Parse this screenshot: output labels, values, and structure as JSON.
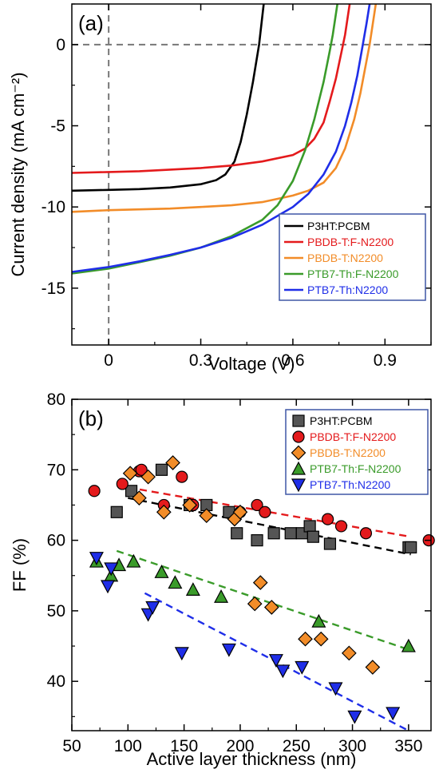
{
  "chart_data": [
    {
      "type": "line",
      "panel_label": "(a)",
      "xlabel": "Voltage (V)",
      "ylabel": "Current density (mA cm⁻²)",
      "xlim": [
        -0.12,
        1.05
      ],
      "ylim": [
        -18.5,
        2.5
      ],
      "xticks": [
        0,
        0.3,
        0.6,
        0.9
      ],
      "xtick_labels": [
        "0",
        "0.3",
        "0.6",
        "0.9"
      ],
      "yticks": [
        0,
        -5,
        -10,
        -15
      ],
      "ytick_labels": [
        "0",
        "-5",
        "-10",
        "-15"
      ],
      "grid": false,
      "reference_lines": [
        "x=0 dashed",
        "y=0 dashed"
      ],
      "legend_position": "bottom-right",
      "series": [
        {
          "name": "P3HT:PCBM",
          "color": "#000000",
          "points": [
            [
              -0.12,
              -9.0
            ],
            [
              0.0,
              -8.95
            ],
            [
              0.1,
              -8.9
            ],
            [
              0.2,
              -8.8
            ],
            [
              0.3,
              -8.6
            ],
            [
              0.35,
              -8.35
            ],
            [
              0.38,
              -8.0
            ],
            [
              0.41,
              -7.2
            ],
            [
              0.43,
              -6.0
            ],
            [
              0.45,
              -4.3
            ],
            [
              0.47,
              -2.3
            ],
            [
              0.49,
              0.0
            ],
            [
              0.505,
              2.5
            ]
          ]
        },
        {
          "name": "PBDB-T:F-N2200",
          "color": "#e41a1c",
          "points": [
            [
              -0.12,
              -7.9
            ],
            [
              0.0,
              -7.85
            ],
            [
              0.1,
              -7.8
            ],
            [
              0.2,
              -7.7
            ],
            [
              0.3,
              -7.6
            ],
            [
              0.4,
              -7.45
            ],
            [
              0.5,
              -7.2
            ],
            [
              0.6,
              -6.8
            ],
            [
              0.64,
              -6.4
            ],
            [
              0.67,
              -5.8
            ],
            [
              0.7,
              -4.8
            ],
            [
              0.72,
              -3.5
            ],
            [
              0.74,
              -2.1
            ],
            [
              0.76,
              -0.3
            ],
            [
              0.77,
              0.6
            ],
            [
              0.785,
              2.5
            ]
          ]
        },
        {
          "name": "PBDB-T:N2200",
          "color": "#f28c28",
          "points": [
            [
              -0.12,
              -10.3
            ],
            [
              0.0,
              -10.2
            ],
            [
              0.1,
              -10.15
            ],
            [
              0.2,
              -10.1
            ],
            [
              0.3,
              -10.0
            ],
            [
              0.4,
              -9.9
            ],
            [
              0.5,
              -9.7
            ],
            [
              0.6,
              -9.3
            ],
            [
              0.65,
              -9.0
            ],
            [
              0.7,
              -8.5
            ],
            [
              0.74,
              -7.6
            ],
            [
              0.77,
              -6.4
            ],
            [
              0.8,
              -4.6
            ],
            [
              0.82,
              -3.0
            ],
            [
              0.835,
              -1.5
            ],
            [
              0.85,
              0.0
            ],
            [
              0.87,
              2.5
            ]
          ]
        },
        {
          "name": "PTB7-Th:F-N2200",
          "color": "#3a9b2a",
          "points": [
            [
              -0.12,
              -14.1
            ],
            [
              0.0,
              -13.8
            ],
            [
              0.1,
              -13.4
            ],
            [
              0.2,
              -13.0
            ],
            [
              0.3,
              -12.5
            ],
            [
              0.4,
              -11.8
            ],
            [
              0.5,
              -10.8
            ],
            [
              0.55,
              -9.9
            ],
            [
              0.6,
              -8.4
            ],
            [
              0.64,
              -6.5
            ],
            [
              0.67,
              -4.6
            ],
            [
              0.7,
              -2.3
            ],
            [
              0.72,
              -0.4
            ],
            [
              0.73,
              0.6
            ],
            [
              0.745,
              2.5
            ]
          ]
        },
        {
          "name": "PTB7-Th:N2200",
          "color": "#1f2ee8",
          "points": [
            [
              -0.12,
              -14.0
            ],
            [
              0.0,
              -13.7
            ],
            [
              0.1,
              -13.35
            ],
            [
              0.2,
              -12.95
            ],
            [
              0.3,
              -12.5
            ],
            [
              0.4,
              -11.9
            ],
            [
              0.5,
              -11.1
            ],
            [
              0.6,
              -10.0
            ],
            [
              0.65,
              -9.2
            ],
            [
              0.7,
              -8.0
            ],
            [
              0.74,
              -6.6
            ],
            [
              0.77,
              -5.0
            ],
            [
              0.79,
              -3.6
            ],
            [
              0.81,
              -1.9
            ],
            [
              0.825,
              -0.3
            ],
            [
              0.84,
              1.3
            ],
            [
              0.85,
              2.5
            ]
          ]
        }
      ]
    },
    {
      "type": "scatter",
      "panel_label": "(b)",
      "xlabel": "Active layer thickness (nm)",
      "ylabel": "FF (%)",
      "xlim": [
        50,
        370
      ],
      "ylim": [
        33,
        80
      ],
      "xticks": [
        50,
        100,
        150,
        200,
        250,
        300,
        350
      ],
      "xtick_labels": [
        "50",
        "100",
        "150",
        "200",
        "250",
        "300",
        "350"
      ],
      "yticks": [
        40,
        50,
        60,
        70,
        80
      ],
      "ytick_labels": [
        "40",
        "50",
        "60",
        "70",
        "80"
      ],
      "grid": false,
      "legend_position": "top-right",
      "series": [
        {
          "name": "P3HT:PCBM",
          "color": "#555555",
          "marker": "square",
          "x": [
            90,
            103,
            130,
            155,
            170,
            190,
            197,
            215,
            230,
            245,
            255,
            262,
            265,
            280,
            350,
            352
          ],
          "y": [
            64,
            67,
            70,
            65,
            65,
            64,
            61,
            60,
            61,
            61,
            61,
            62,
            60.5,
            59.5,
            59,
            59
          ],
          "trend": [
            [
              100,
              66
            ],
            [
              352,
              58
            ]
          ],
          "trend_color": "#000000"
        },
        {
          "name": "PBDB-T:F-N2200",
          "color": "#e41a1c",
          "marker": "circle",
          "x": [
            70,
            95,
            110,
            112,
            132,
            148,
            158,
            200,
            215,
            222,
            278,
            290,
            312,
            368
          ],
          "y": [
            67,
            68,
            69.8,
            70,
            65,
            69,
            65,
            64,
            65,
            64,
            63,
            62,
            61,
            60
          ],
          "trend": [
            [
              100,
              67.5
            ],
            [
              352,
              60.5
            ]
          ],
          "trend_color": "#e41a1c"
        },
        {
          "name": "PBDB-T:N2200",
          "color": "#f28c28",
          "marker": "diamond",
          "x": [
            102,
            110,
            118,
            132,
            140,
            155,
            170,
            195,
            200,
            213,
            218,
            228,
            258,
            272,
            297,
            318
          ],
          "y": [
            69.5,
            66,
            69,
            64,
            71,
            65,
            63.5,
            63,
            64,
            51,
            54,
            50.5,
            46,
            46,
            44,
            42
          ],
          "trend": null
        },
        {
          "name": "PTB7-Th:F-N2200",
          "color": "#3a9b2a",
          "marker": "triangle-up",
          "x": [
            72,
            85,
            92,
            105,
            130,
            142,
            158,
            183,
            270,
            350
          ],
          "y": [
            57,
            55,
            56.5,
            57,
            55.5,
            54,
            53,
            52,
            48.5,
            45
          ],
          "trend": [
            [
              90,
              58.5
            ],
            [
              350,
              44.5
            ]
          ],
          "trend_color": "#3a9b2a"
        },
        {
          "name": "PTB7-Th:N2200",
          "color": "#1f2ee8",
          "marker": "triangle-down",
          "x": [
            72,
            82,
            85,
            118,
            122,
            148,
            190,
            232,
            238,
            255,
            285,
            302,
            336
          ],
          "y": [
            57.5,
            53.5,
            56,
            49.5,
            50.5,
            44,
            44.5,
            43,
            41.5,
            42,
            39,
            35,
            35.5
          ],
          "trend": [
            [
              115,
              52.5
            ],
            [
              350,
              33
            ]
          ],
          "trend_color": "#1f2ee8"
        }
      ]
    }
  ]
}
